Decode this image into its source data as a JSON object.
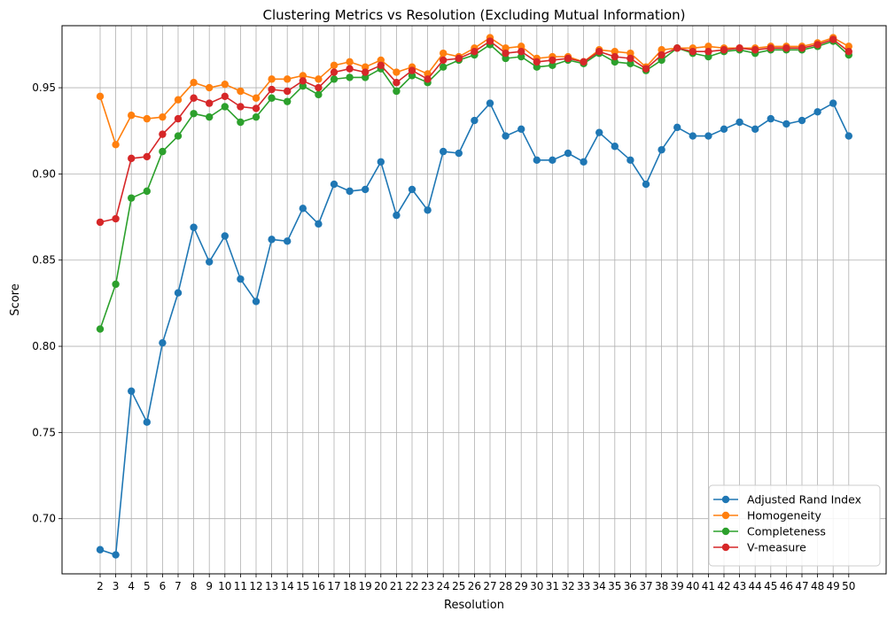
{
  "chart_data": {
    "type": "line",
    "title": "Clustering Metrics vs Resolution (Excluding Mutual Information)",
    "xlabel": "Resolution",
    "ylabel": "Score",
    "ylim": [
      0.668,
      0.986
    ],
    "yticks": [
      "0.70",
      "0.75",
      "0.80",
      "0.85",
      "0.90",
      "0.95"
    ],
    "grid": true,
    "legend_position": "lower right",
    "x": [
      2,
      3,
      4,
      5,
      6,
      7,
      8,
      9,
      10,
      11,
      12,
      13,
      14,
      15,
      16,
      17,
      18,
      19,
      20,
      21,
      22,
      23,
      24,
      25,
      26,
      27,
      28,
      29,
      30,
      31,
      32,
      33,
      34,
      35,
      36,
      37,
      38,
      39,
      40,
      41,
      42,
      43,
      44,
      45,
      46,
      47,
      48,
      49,
      50
    ],
    "series": [
      {
        "name": "Adjusted Rand Index",
        "color": "#1f77b4",
        "values": [
          0.682,
          0.679,
          0.774,
          0.756,
          0.802,
          0.831,
          0.869,
          0.849,
          0.864,
          0.839,
          0.826,
          0.862,
          0.861,
          0.88,
          0.871,
          0.894,
          0.89,
          0.891,
          0.907,
          0.876,
          0.891,
          0.879,
          0.913,
          0.912,
          0.931,
          0.941,
          0.922,
          0.926,
          0.908,
          0.908,
          0.912,
          0.907,
          0.924,
          0.916,
          0.908,
          0.894,
          0.914,
          0.927,
          0.922,
          0.922,
          0.926,
          0.93,
          0.926,
          0.932,
          0.929,
          0.931,
          0.936,
          0.941,
          0.922
        ]
      },
      {
        "name": "Homogeneity",
        "color": "#ff7f0e",
        "values": [
          0.945,
          0.917,
          0.934,
          0.932,
          0.933,
          0.943,
          0.953,
          0.95,
          0.952,
          0.948,
          0.944,
          0.955,
          0.955,
          0.957,
          0.955,
          0.963,
          0.965,
          0.962,
          0.966,
          0.959,
          0.962,
          0.958,
          0.97,
          0.968,
          0.973,
          0.979,
          0.973,
          0.974,
          0.967,
          0.968,
          0.968,
          0.965,
          0.972,
          0.971,
          0.97,
          0.962,
          0.972,
          0.973,
          0.973,
          0.974,
          0.973,
          0.973,
          0.973,
          0.974,
          0.974,
          0.974,
          0.976,
          0.979,
          0.974
        ]
      },
      {
        "name": "Completeness",
        "color": "#2ca02c",
        "values": [
          0.81,
          0.836,
          0.886,
          0.89,
          0.913,
          0.922,
          0.935,
          0.933,
          0.939,
          0.93,
          0.933,
          0.944,
          0.942,
          0.951,
          0.946,
          0.955,
          0.956,
          0.956,
          0.961,
          0.948,
          0.957,
          0.953,
          0.962,
          0.966,
          0.969,
          0.975,
          0.967,
          0.968,
          0.962,
          0.963,
          0.966,
          0.964,
          0.97,
          0.965,
          0.964,
          0.96,
          0.966,
          0.973,
          0.97,
          0.968,
          0.971,
          0.972,
          0.97,
          0.972,
          0.972,
          0.972,
          0.974,
          0.977,
          0.969
        ]
      },
      {
        "name": "V-measure",
        "color": "#d62728",
        "values": [
          0.872,
          0.874,
          0.909,
          0.91,
          0.923,
          0.932,
          0.944,
          0.941,
          0.945,
          0.939,
          0.938,
          0.949,
          0.948,
          0.954,
          0.95,
          0.959,
          0.961,
          0.959,
          0.963,
          0.953,
          0.96,
          0.955,
          0.966,
          0.967,
          0.971,
          0.977,
          0.97,
          0.971,
          0.965,
          0.966,
          0.967,
          0.965,
          0.971,
          0.968,
          0.967,
          0.961,
          0.969,
          0.973,
          0.971,
          0.971,
          0.972,
          0.973,
          0.972,
          0.973,
          0.973,
          0.973,
          0.975,
          0.978,
          0.971
        ]
      }
    ]
  }
}
